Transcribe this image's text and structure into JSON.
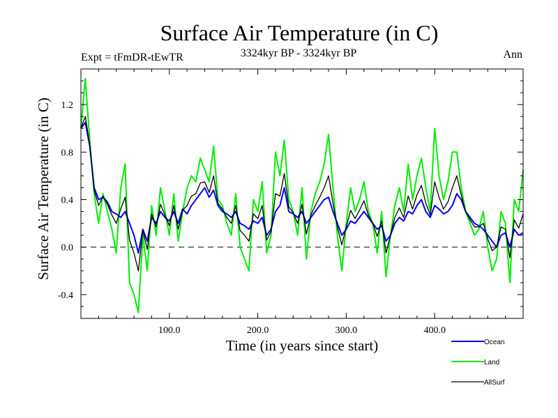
{
  "header": {
    "title": "Surface Air Temperature (in C)",
    "expt": "Expt = tFmDR-tEwTR",
    "period": "3324kyr BP - 3324kyr BP",
    "season": "Ann"
  },
  "chart_data": {
    "type": "line",
    "title": "Surface Air Temperature (in C)",
    "xlabel": "Time (in years since start)",
    "ylabel": "Surface Air Temperature (in C)",
    "xlim": [
      0,
      500
    ],
    "ylim": [
      -0.6,
      1.5
    ],
    "xticks": [
      100,
      200,
      300,
      400
    ],
    "xtick_labels": [
      "100.0",
      "200.0",
      "300.0",
      "400.0"
    ],
    "yticks": [
      -0.4,
      0.0,
      0.4,
      0.8,
      1.2
    ],
    "ytick_labels": [
      "-0.4",
      "0.0",
      "0.4",
      "0.8",
      "1.2"
    ],
    "reference_line": 0.0,
    "legend_position": "bottom-right",
    "series": [
      {
        "name": "Ocean",
        "color": "#0000ff",
        "x": [
          0,
          5,
          10,
          15,
          20,
          25,
          30,
          35,
          40,
          45,
          50,
          55,
          60,
          65,
          70,
          75,
          80,
          85,
          90,
          95,
          100,
          105,
          110,
          115,
          120,
          125,
          130,
          135,
          140,
          145,
          150,
          155,
          160,
          165,
          170,
          175,
          180,
          185,
          190,
          195,
          200,
          205,
          210,
          215,
          220,
          225,
          230,
          235,
          240,
          245,
          250,
          255,
          260,
          265,
          270,
          275,
          280,
          285,
          290,
          295,
          300,
          305,
          310,
          315,
          320,
          325,
          330,
          335,
          340,
          345,
          350,
          355,
          360,
          365,
          370,
          375,
          380,
          385,
          390,
          395,
          400,
          405,
          410,
          415,
          420,
          425,
          430,
          435,
          440,
          445,
          450,
          455,
          460,
          465,
          470,
          475,
          480,
          485,
          490,
          495,
          500
        ],
        "values": [
          1.0,
          1.05,
          0.85,
          0.5,
          0.4,
          0.42,
          0.38,
          0.3,
          0.28,
          0.25,
          0.3,
          0.2,
          0.1,
          -0.05,
          0.15,
          0.05,
          0.25,
          0.2,
          0.3,
          0.25,
          0.22,
          0.3,
          0.2,
          0.32,
          0.28,
          0.35,
          0.4,
          0.45,
          0.5,
          0.42,
          0.48,
          0.35,
          0.3,
          0.28,
          0.25,
          0.3,
          0.2,
          0.18,
          0.15,
          0.22,
          0.2,
          0.25,
          0.1,
          0.15,
          0.3,
          0.35,
          0.5,
          0.3,
          0.28,
          0.25,
          0.3,
          0.2,
          0.25,
          0.3,
          0.35,
          0.4,
          0.42,
          0.3,
          0.2,
          0.1,
          0.15,
          0.22,
          0.2,
          0.25,
          0.3,
          0.25,
          0.2,
          0.15,
          0.18,
          0.05,
          0.1,
          0.2,
          0.25,
          0.22,
          0.3,
          0.28,
          0.35,
          0.4,
          0.3,
          0.25,
          0.35,
          0.32,
          0.28,
          0.3,
          0.35,
          0.45,
          0.4,
          0.3,
          0.25,
          0.2,
          0.18,
          0.15,
          0.1,
          0.05,
          0.0,
          0.1,
          0.12,
          0.0,
          0.15,
          0.1,
          0.12
        ]
      },
      {
        "name": "Land",
        "color": "#00ee00",
        "x": [
          0,
          5,
          10,
          15,
          20,
          25,
          30,
          35,
          40,
          45,
          50,
          55,
          60,
          65,
          70,
          75,
          80,
          85,
          90,
          95,
          100,
          105,
          110,
          115,
          120,
          125,
          130,
          135,
          140,
          145,
          150,
          155,
          160,
          165,
          170,
          175,
          180,
          185,
          190,
          195,
          200,
          205,
          210,
          215,
          220,
          225,
          230,
          235,
          240,
          245,
          250,
          255,
          260,
          265,
          270,
          275,
          280,
          285,
          290,
          295,
          300,
          305,
          310,
          315,
          320,
          325,
          330,
          335,
          340,
          345,
          350,
          355,
          360,
          365,
          370,
          375,
          380,
          385,
          390,
          395,
          400,
          405,
          410,
          415,
          420,
          425,
          430,
          435,
          440,
          445,
          450,
          455,
          460,
          465,
          470,
          475,
          480,
          485,
          490,
          495,
          500
        ],
        "values": [
          1.0,
          1.42,
          0.9,
          0.45,
          0.2,
          0.45,
          0.3,
          0.15,
          -0.05,
          0.5,
          0.7,
          -0.3,
          -0.4,
          -0.55,
          0.1,
          -0.2,
          0.35,
          0.1,
          0.5,
          0.3,
          0.1,
          0.45,
          0.05,
          0.3,
          0.5,
          0.6,
          0.55,
          0.75,
          0.65,
          0.55,
          0.85,
          0.4,
          0.35,
          0.2,
          0.1,
          0.45,
          0.0,
          -0.1,
          -0.2,
          0.4,
          0.3,
          0.55,
          -0.05,
          0.1,
          0.8,
          0.6,
          0.9,
          0.4,
          0.3,
          0.1,
          0.5,
          -0.1,
          0.3,
          0.45,
          0.55,
          0.7,
          0.95,
          0.5,
          0.1,
          -0.2,
          0.2,
          0.5,
          0.3,
          0.4,
          0.55,
          0.3,
          0.2,
          -0.05,
          0.3,
          -0.25,
          0.1,
          0.35,
          0.5,
          0.3,
          0.7,
          0.4,
          0.6,
          0.75,
          0.5,
          0.3,
          1.0,
          0.6,
          0.4,
          0.55,
          0.8,
          0.8,
          0.5,
          0.3,
          0.2,
          0.1,
          0.15,
          0.3,
          0.0,
          -0.2,
          -0.1,
          0.3,
          0.2,
          -0.3,
          0.4,
          0.3,
          0.65
        ]
      },
      {
        "name": "AllSurf",
        "color": "#000000",
        "x": [
          0,
          5,
          10,
          15,
          20,
          25,
          30,
          35,
          40,
          45,
          50,
          55,
          60,
          65,
          70,
          75,
          80,
          85,
          90,
          95,
          100,
          105,
          110,
          115,
          120,
          125,
          130,
          135,
          140,
          145,
          150,
          155,
          160,
          165,
          170,
          175,
          180,
          185,
          190,
          195,
          200,
          205,
          210,
          215,
          220,
          225,
          230,
          235,
          240,
          245,
          250,
          255,
          260,
          265,
          270,
          275,
          280,
          285,
          290,
          295,
          300,
          305,
          310,
          315,
          320,
          325,
          330,
          335,
          340,
          345,
          350,
          355,
          360,
          365,
          370,
          375,
          380,
          385,
          390,
          395,
          400,
          405,
          410,
          415,
          420,
          425,
          430,
          435,
          440,
          445,
          450,
          455,
          460,
          465,
          470,
          475,
          480,
          485,
          490,
          495,
          500
        ],
        "values": [
          1.0,
          1.1,
          0.86,
          0.48,
          0.35,
          0.43,
          0.36,
          0.27,
          0.2,
          0.32,
          0.42,
          0.06,
          -0.05,
          -0.2,
          0.14,
          -0.02,
          0.28,
          0.17,
          0.36,
          0.27,
          0.18,
          0.35,
          0.15,
          0.31,
          0.35,
          0.43,
          0.45,
          0.54,
          0.55,
          0.46,
          0.6,
          0.37,
          0.32,
          0.25,
          0.2,
          0.35,
          0.14,
          0.1,
          0.05,
          0.28,
          0.24,
          0.35,
          0.06,
          0.13,
          0.45,
          0.43,
          0.62,
          0.34,
          0.29,
          0.2,
          0.36,
          0.11,
          0.27,
          0.35,
          0.42,
          0.5,
          0.6,
          0.37,
          0.17,
          0.02,
          0.17,
          0.31,
          0.24,
          0.31,
          0.39,
          0.27,
          0.2,
          0.09,
          0.22,
          -0.05,
          0.1,
          0.25,
          0.33,
          0.25,
          0.43,
          0.32,
          0.44,
          0.52,
          0.37,
          0.27,
          0.55,
          0.42,
          0.32,
          0.38,
          0.5,
          0.6,
          0.44,
          0.3,
          0.23,
          0.17,
          0.17,
          0.2,
          0.07,
          -0.03,
          0.0,
          0.17,
          0.15,
          -0.09,
          0.23,
          0.16,
          0.28
        ]
      }
    ]
  }
}
